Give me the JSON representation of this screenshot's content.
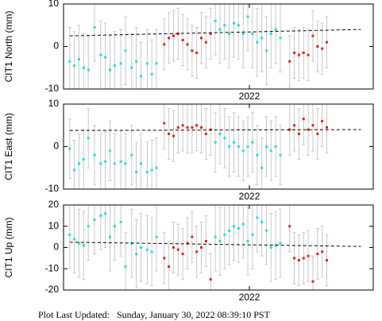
{
  "chart_data": [
    {
      "type": "scatter",
      "ylabel": "CIT1 North (mm)",
      "xlim": [
        2020.8,
        2022.8
      ],
      "xticks": [
        {
          "value": 2022.0,
          "label": "2022"
        }
      ],
      "ylim": [
        -10,
        10
      ],
      "yticks": [
        -10,
        0,
        10
      ],
      "series": [
        {
          "color": "#22dddd",
          "error": 8,
          "x": [
            2020.84,
            2020.87,
            2020.9,
            2020.93,
            2020.96,
            2021.0,
            2021.04,
            2021.07,
            2021.1,
            2021.13,
            2021.17,
            2021.2,
            2021.24,
            2021.27,
            2021.3,
            2021.34,
            2021.37,
            2021.4,
            2021.78,
            2021.81,
            2021.84,
            2021.87,
            2021.9,
            2021.93,
            2021.96,
            2021.99,
            2022.02,
            2022.05,
            2022.08,
            2022.11,
            2022.14,
            2022.17,
            2022.2
          ],
          "values": [
            -3.5,
            -4.5,
            -3,
            -5,
            -5.5,
            4.5,
            -2,
            -2.5,
            -5.5,
            -4.5,
            -4,
            -1,
            -5,
            -3.5,
            -7,
            -4,
            -6.5,
            -4,
            6,
            4,
            5,
            3,
            5.5,
            5,
            3,
            7,
            3,
            1,
            2,
            -1,
            3,
            4,
            2
          ]
        },
        {
          "color": "#dd2222",
          "error": 6,
          "x": [
            2021.45,
            2021.48,
            2021.51,
            2021.54,
            2021.57,
            2021.6,
            2021.63,
            2021.66,
            2021.69,
            2021.72,
            2021.75,
            2022.26,
            2022.29,
            2022.32,
            2022.35,
            2022.38,
            2022.41,
            2022.44,
            2022.47,
            2022.5
          ],
          "values": [
            0.5,
            2,
            2.5,
            3,
            1.5,
            0.5,
            -1,
            -1.5,
            2,
            1,
            3,
            -3.5,
            -1.5,
            -2,
            -1.5,
            -2,
            2.5,
            0,
            -0.5,
            1
          ]
        }
      ],
      "trend": {
        "x": [
          2020.84,
          2022.72
        ],
        "values": [
          2.5,
          4
        ]
      }
    },
    {
      "type": "scatter",
      "ylabel": "CIT1 East (mm)",
      "xlim": [
        2020.8,
        2022.8
      ],
      "xticks": [
        {
          "value": 2022.0,
          "label": "2022"
        }
      ],
      "ylim": [
        -10,
        10
      ],
      "yticks": [
        -10,
        0,
        10
      ],
      "series": [
        {
          "color": "#22dddd",
          "error": 7,
          "x": [
            2020.84,
            2020.87,
            2020.9,
            2020.93,
            2020.96,
            2021.0,
            2021.04,
            2021.07,
            2021.1,
            2021.13,
            2021.17,
            2021.2,
            2021.24,
            2021.27,
            2021.3,
            2021.34,
            2021.37,
            2021.4,
            2021.78,
            2021.81,
            2021.84,
            2021.87,
            2021.9,
            2021.93,
            2021.96,
            2021.99,
            2022.02,
            2022.05,
            2022.08,
            2022.11,
            2022.14,
            2022.17,
            2022.2
          ],
          "values": [
            -0.5,
            -5.5,
            -4,
            -3,
            2,
            -2,
            -4,
            -3.5,
            -1,
            -4,
            -3.5,
            -4,
            -2,
            -6,
            -4,
            -6,
            -5.5,
            -5,
            1,
            3,
            2,
            0,
            1,
            0,
            -1,
            0,
            1,
            -2,
            -5,
            0,
            -1,
            0,
            -2
          ]
        },
        {
          "color": "#dd2222",
          "error": 6,
          "x": [
            2021.45,
            2021.48,
            2021.51,
            2021.54,
            2021.57,
            2021.6,
            2021.63,
            2021.66,
            2021.69,
            2021.72,
            2021.75,
            2022.26,
            2022.29,
            2022.32,
            2022.35,
            2022.38,
            2022.41,
            2022.44,
            2022.47,
            2022.5
          ],
          "values": [
            5.5,
            3,
            2.5,
            4.5,
            5,
            4.5,
            4.5,
            5,
            4.5,
            3,
            4,
            4,
            5,
            3,
            6.5,
            4,
            5,
            3,
            6,
            4.5
          ]
        }
      ],
      "trend": {
        "x": [
          2020.84,
          2022.72
        ],
        "values": [
          3.8,
          4.0
        ]
      }
    },
    {
      "type": "scatter",
      "ylabel": "CIT1 Up (mm)",
      "xlim": [
        2020.8,
        2022.8
      ],
      "xticks": [
        {
          "value": 2022.0,
          "label": "2022"
        }
      ],
      "ylim": [
        -20,
        20
      ],
      "yticks": [
        -20,
        -10,
        0,
        10,
        20
      ],
      "series": [
        {
          "color": "#22dddd",
          "error": 16,
          "x": [
            2020.84,
            2020.87,
            2020.9,
            2020.93,
            2020.96,
            2021.0,
            2021.04,
            2021.07,
            2021.1,
            2021.13,
            2021.17,
            2021.2,
            2021.24,
            2021.27,
            2021.3,
            2021.34,
            2021.37,
            2021.4,
            2021.78,
            2021.81,
            2021.84,
            2021.87,
            2021.9,
            2021.93,
            2021.96,
            2021.99,
            2022.02,
            2022.05,
            2022.08,
            2022.11,
            2022.14,
            2022.17,
            2022.2
          ],
          "values": [
            6,
            4,
            2,
            1,
            10,
            13,
            15,
            16,
            5,
            10,
            12,
            -9,
            2,
            -3,
            0,
            -1,
            -2,
            5,
            5,
            3,
            6,
            8,
            10,
            9,
            11,
            3,
            6,
            14,
            12,
            8,
            0,
            1,
            2
          ]
        },
        {
          "color": "#dd2222",
          "error": 12,
          "x": [
            2021.45,
            2021.48,
            2021.51,
            2021.54,
            2021.57,
            2021.6,
            2021.63,
            2021.66,
            2021.69,
            2021.72,
            2021.75,
            2022.26,
            2022.29,
            2022.32,
            2022.35,
            2022.38,
            2022.41,
            2022.44,
            2022.47,
            2022.5
          ],
          "values": [
            -5,
            -9,
            0,
            -1,
            -3,
            2,
            5,
            -2,
            0,
            3,
            -15,
            10,
            -5,
            -6,
            -5,
            -4,
            -16,
            -3,
            -2,
            -6
          ]
        }
      ],
      "trend": {
        "x": [
          2020.84,
          2022.72
        ],
        "values": [
          2.5,
          0.5
        ]
      }
    }
  ],
  "footer": "Plot Last Updated:   Sunday, January 30, 2022 08:39:10 PST"
}
